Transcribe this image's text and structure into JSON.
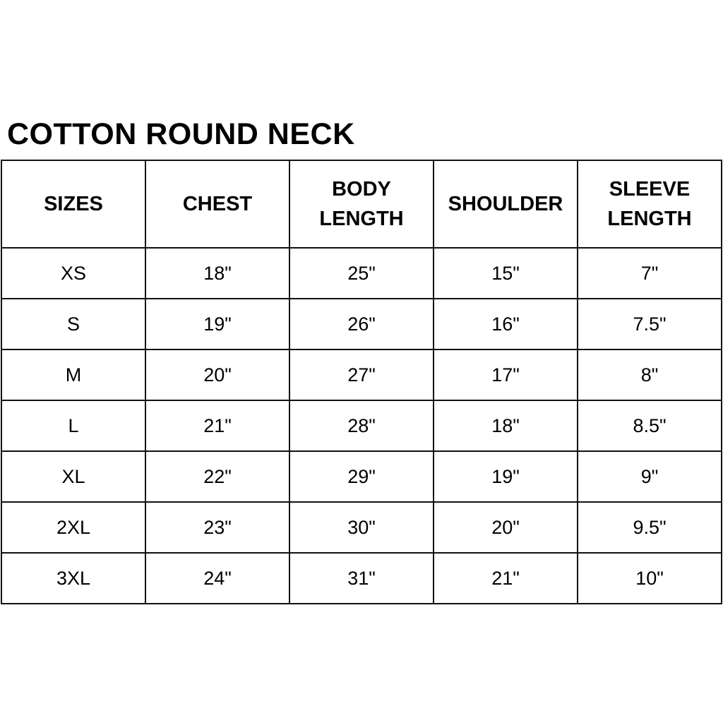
{
  "title": "COTTON ROUND NECK",
  "table": {
    "headers": [
      [
        "SIZES"
      ],
      [
        "CHEST"
      ],
      [
        "BODY",
        "LENGTH"
      ],
      [
        "SHOULDER"
      ],
      [
        "SLEEVE",
        "LENGTH"
      ]
    ],
    "rows": [
      [
        "XS",
        "18\"",
        "25\"",
        "15\"",
        "7\""
      ],
      [
        "S",
        "19\"",
        "26\"",
        "16\"",
        "7.5\""
      ],
      [
        "M",
        "20\"",
        "27\"",
        "17\"",
        "8\""
      ],
      [
        "L",
        "21\"",
        "28\"",
        "18\"",
        "8.5\""
      ],
      [
        "XL",
        "22\"",
        "29\"",
        "19\"",
        "9\""
      ],
      [
        "2XL",
        "23\"",
        "30\"",
        "20\"",
        "9.5\""
      ],
      [
        "3XL",
        "24\"",
        "31\"",
        "21\"",
        "10\""
      ]
    ]
  }
}
